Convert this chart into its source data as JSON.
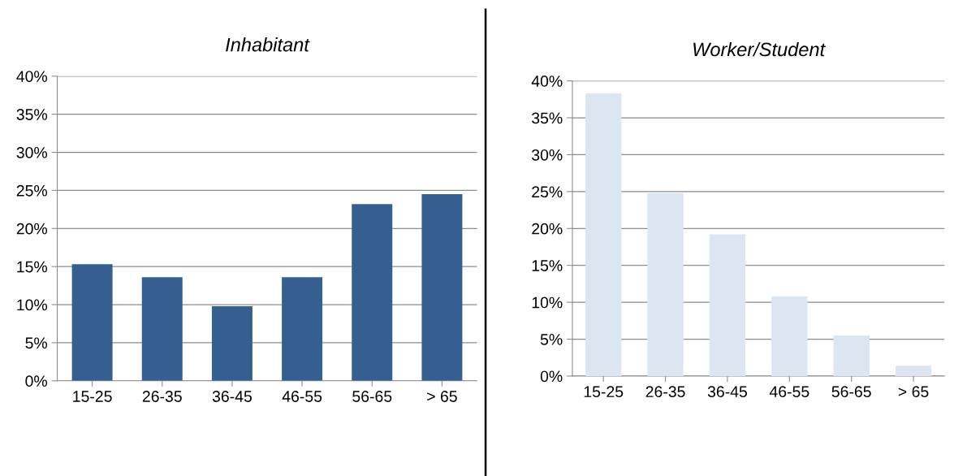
{
  "chart_data": [
    {
      "type": "bar",
      "title": "Inhabitant",
      "categories": [
        "15-25",
        "26-35",
        "36-45",
        "46-55",
        "56-65",
        "> 65"
      ],
      "values": [
        15.3,
        13.6,
        9.8,
        13.6,
        23.2,
        24.5
      ],
      "color": "#365f91",
      "ylim": [
        0,
        40
      ],
      "yticks": [
        {
          "value": 0,
          "label": "0%"
        },
        {
          "value": 5,
          "label": "5%"
        },
        {
          "value": 10,
          "label": "10%"
        },
        {
          "value": 15,
          "label": "15%"
        },
        {
          "value": 20,
          "label": "20%"
        },
        {
          "value": 25,
          "label": "25%"
        },
        {
          "value": 30,
          "label": "30%"
        },
        {
          "value": 35,
          "label": "35%"
        },
        {
          "value": 40,
          "label": "40%"
        }
      ],
      "grid": "y"
    },
    {
      "type": "bar",
      "title": "Worker/Student",
      "categories": [
        "15-25",
        "26-35",
        "36-45",
        "46-55",
        "56-65",
        "> 65"
      ],
      "values": [
        38.3,
        24.8,
        19.2,
        10.8,
        5.5,
        1.4
      ],
      "color": "#dce6f2",
      "ylim": [
        0,
        40
      ],
      "yticks": [
        {
          "value": 0,
          "label": "0%"
        },
        {
          "value": 5,
          "label": "5%"
        },
        {
          "value": 10,
          "label": "10%"
        },
        {
          "value": 15,
          "label": "15%"
        },
        {
          "value": 20,
          "label": "20%"
        },
        {
          "value": 25,
          "label": "25%"
        },
        {
          "value": 30,
          "label": "30%"
        },
        {
          "value": 35,
          "label": "35%"
        },
        {
          "value": 40,
          "label": "40%"
        }
      ],
      "grid": "y"
    }
  ]
}
